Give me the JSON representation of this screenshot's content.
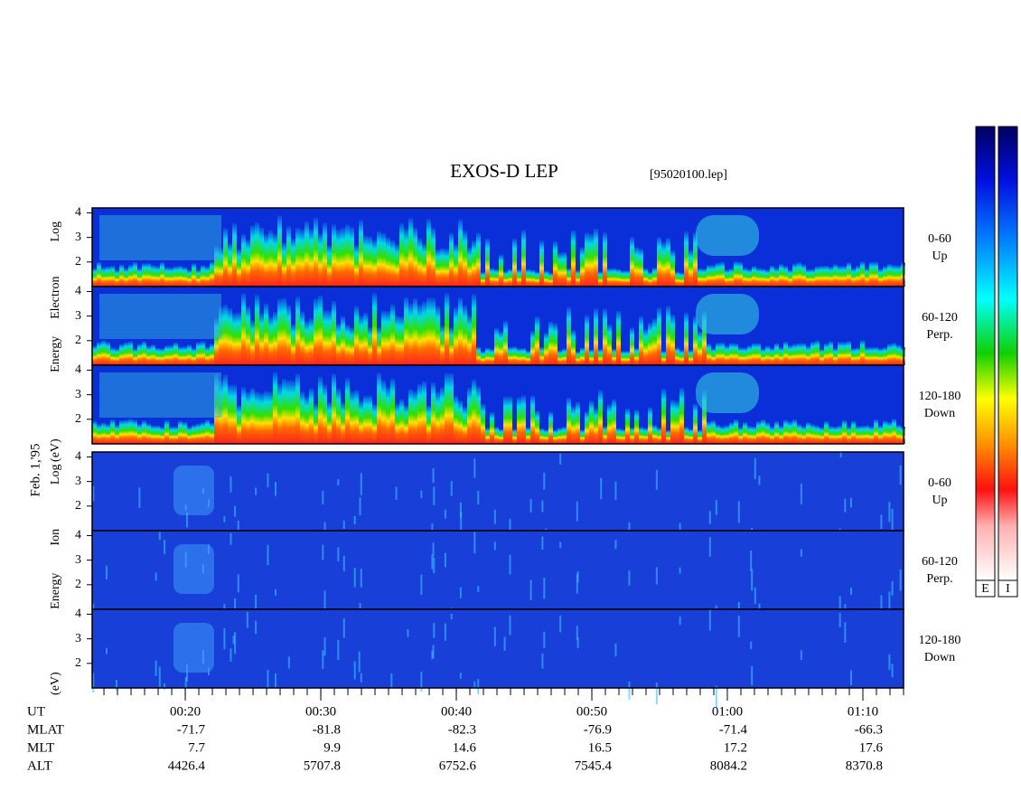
{
  "title": "EXOS-D LEP",
  "file": "[95020100.lep]",
  "date_label": "Feb. 1,'95",
  "groups": [
    {
      "ylabel_words": [
        "Log",
        "Electron",
        "Energy",
        "(eV)"
      ],
      "panels": [
        {
          "pitch": "0-60",
          "direction": "Up",
          "ylim": [
            1,
            4.2
          ],
          "yticks": [
            2,
            3,
            4
          ]
        },
        {
          "pitch": "60-120",
          "direction": "Perp.",
          "ylim": [
            1,
            4.2
          ],
          "yticks": [
            2,
            3,
            4
          ]
        },
        {
          "pitch": "120-180",
          "direction": "Down",
          "ylim": [
            1,
            4.2
          ],
          "yticks": [
            2,
            3,
            4
          ]
        }
      ]
    },
    {
      "ylabel_words": [
        "Log",
        "Ion",
        "Energy",
        "(eV)"
      ],
      "panels": [
        {
          "pitch": "0-60",
          "direction": "Up",
          "ylim": [
            1,
            4.2
          ],
          "yticks": [
            2,
            3,
            4
          ]
        },
        {
          "pitch": "60-120",
          "direction": "Perp.",
          "ylim": [
            1,
            4.2
          ],
          "yticks": [
            2,
            3,
            4
          ]
        },
        {
          "pitch": "120-180",
          "direction": "Down",
          "ylim": [
            1,
            4.2
          ],
          "yticks": [
            2,
            3,
            4
          ]
        }
      ]
    }
  ],
  "time_axis": {
    "label": "UT",
    "xlim": [
      13.13,
      73.0
    ],
    "ticks": [
      {
        "value": 20,
        "label": "00:20"
      },
      {
        "value": 30,
        "label": "00:30"
      },
      {
        "value": 40,
        "label": "00:40"
      },
      {
        "value": 50,
        "label": "00:50"
      },
      {
        "value": 60,
        "label": "01:00"
      },
      {
        "value": 70,
        "label": "01:10"
      }
    ]
  },
  "ephemeris": [
    {
      "label": "MLAT",
      "values": [
        -71.7,
        -81.8,
        -82.3,
        -76.9,
        -71.4,
        -66.3
      ]
    },
    {
      "label": "MLT",
      "values": [
        7.7,
        9.9,
        14.6,
        16.5,
        17.2,
        17.6
      ]
    },
    {
      "label": "ALT",
      "values": [
        4426.4,
        5707.8,
        6752.6,
        7545.4,
        8084.2,
        8370.8
      ]
    }
  ],
  "colorbars": [
    "E",
    "I"
  ]
}
